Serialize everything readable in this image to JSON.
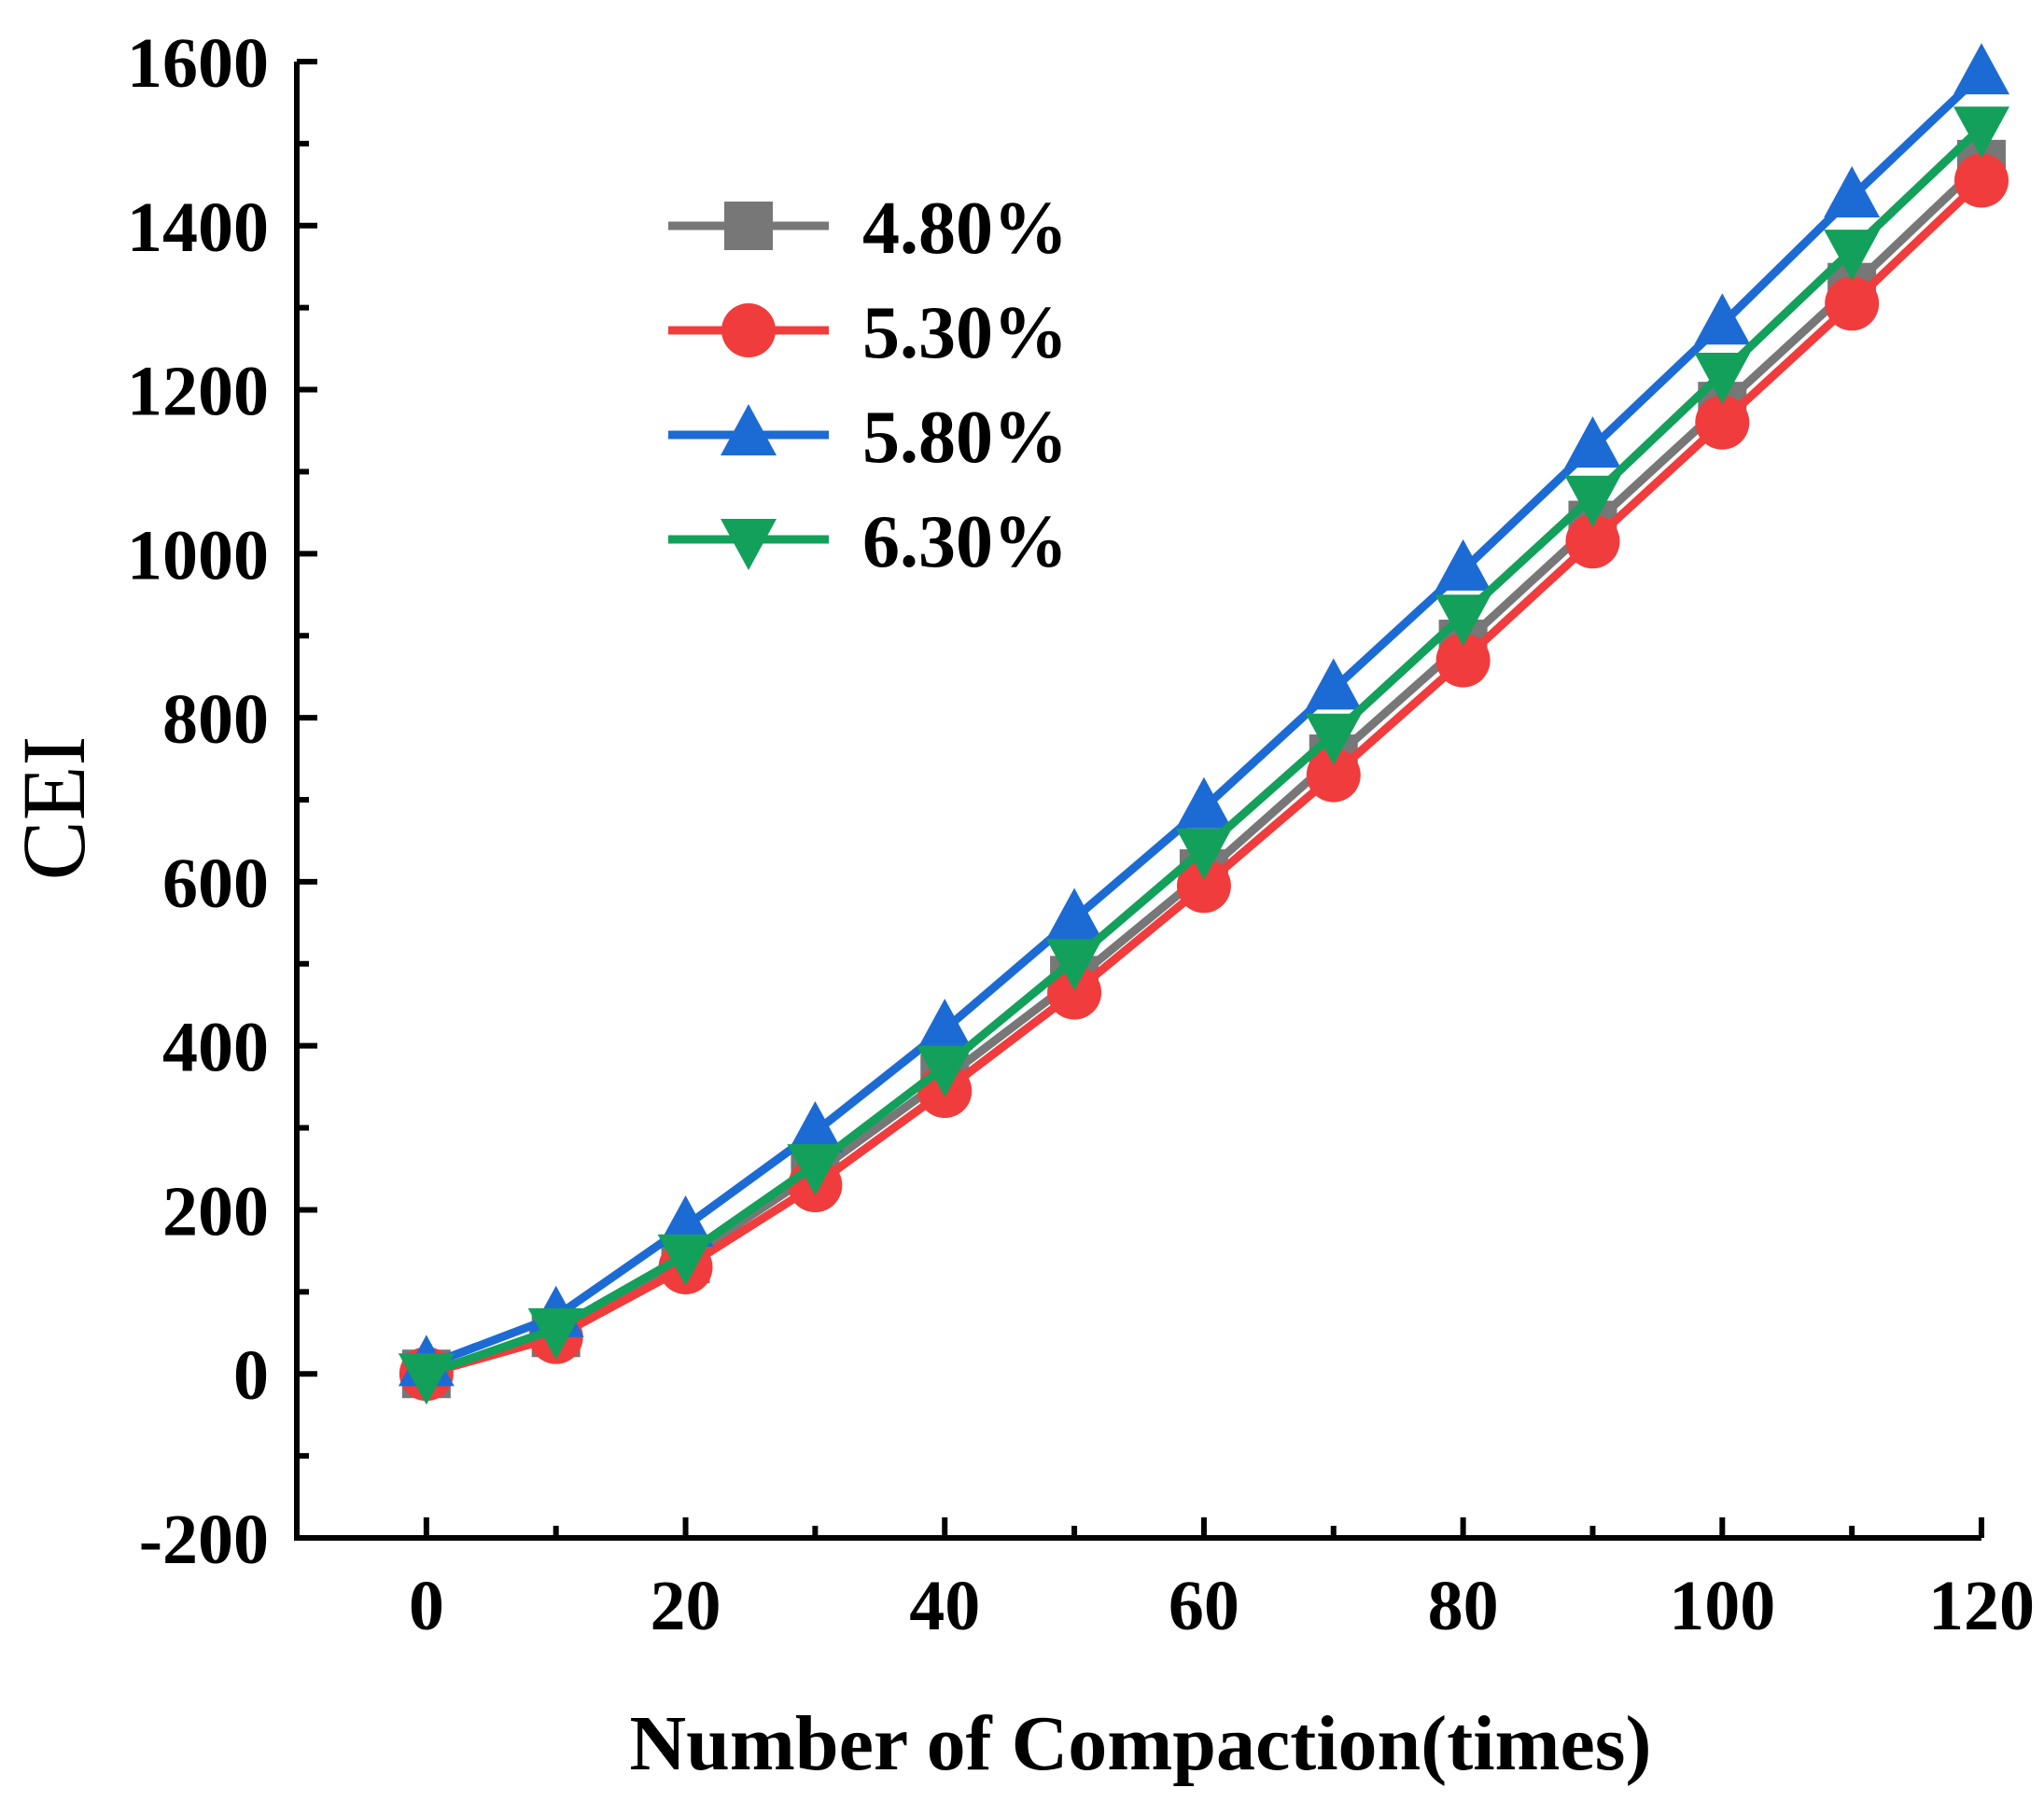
{
  "chart_data": {
    "type": "line",
    "title": "",
    "xlabel": "Number of Compaction(times)",
    "ylabel": "CEI",
    "xlim": [
      -10,
      120
    ],
    "ylim": [
      -200,
      1600
    ],
    "xticks": [
      0,
      20,
      40,
      60,
      80,
      100,
      120
    ],
    "yticks": [
      -200,
      0,
      200,
      400,
      600,
      800,
      1000,
      1200,
      1400,
      1600
    ],
    "x": [
      0,
      10,
      20,
      30,
      40,
      50,
      60,
      70,
      80,
      90,
      100,
      110,
      120
    ],
    "series": [
      {
        "name": "4.80%",
        "color": "#777777",
        "marker": "square",
        "values": [
          0,
          50,
          140,
          245,
          360,
          480,
          610,
          750,
          890,
          1035,
          1180,
          1325,
          1475
        ]
      },
      {
        "name": "5.30%",
        "color": "#f03c3c",
        "marker": "circle",
        "values": [
          0,
          45,
          130,
          230,
          345,
          465,
          595,
          730,
          870,
          1015,
          1160,
          1305,
          1455
        ]
      },
      {
        "name": "5.80%",
        "color": "#1c6bd4",
        "marker": "triangle-up",
        "values": [
          10,
          70,
          180,
          295,
          420,
          555,
          690,
          835,
          980,
          1130,
          1280,
          1435,
          1585
        ]
      },
      {
        "name": "6.30%",
        "color": "#13a05a",
        "marker": "triangle-down",
        "values": [
          0,
          55,
          145,
          255,
          375,
          505,
          640,
          780,
          925,
          1070,
          1220,
          1370,
          1520
        ]
      }
    ],
    "legend_position": "top-left",
    "grid": false
  }
}
